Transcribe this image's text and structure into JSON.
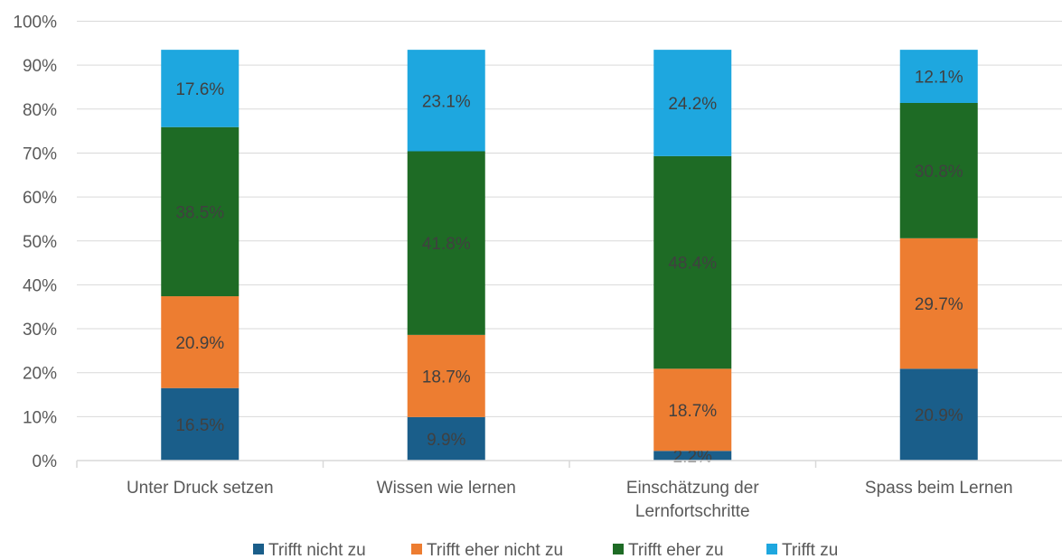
{
  "chart_data": {
    "type": "bar",
    "stacked": true,
    "categories": [
      [
        "Unter Druck setzen"
      ],
      [
        "Wissen wie lernen"
      ],
      [
        "Einschätzung der",
        "Lernfortschritte"
      ],
      [
        "Spass beim Lernen"
      ]
    ],
    "series": [
      {
        "name": "Trifft nicht zu",
        "color": "#1a5e8a",
        "values": [
          16.5,
          9.9,
          2.2,
          20.9
        ],
        "labels": [
          "16.5%",
          "9.9%",
          "2.2%",
          "20.9%"
        ]
      },
      {
        "name": "Trifft eher nicht zu",
        "color": "#ed7d31",
        "values": [
          20.9,
          18.7,
          18.7,
          29.7
        ],
        "labels": [
          "20.9%",
          "18.7%",
          "18.7%",
          "29.7%"
        ]
      },
      {
        "name": "Trifft eher zu",
        "color": "#1e6b25",
        "values": [
          38.5,
          41.8,
          48.4,
          30.8
        ],
        "labels": [
          "38.5%",
          "41.8%",
          "48.4%",
          "30.8%"
        ]
      },
      {
        "name": "Trifft zu",
        "color": "#1ea7df",
        "values": [
          17.6,
          23.1,
          24.2,
          12.1
        ],
        "labels": [
          "17.6%",
          "23.1%",
          "24.2%",
          "12.1%"
        ]
      }
    ],
    "y_ticks": [
      "0%",
      "10%",
      "20%",
      "30%",
      "40%",
      "50%",
      "60%",
      "70%",
      "80%",
      "90%",
      "100%"
    ],
    "ylim": [
      0,
      100
    ],
    "grid": true,
    "legend_position": "bottom",
    "title": "",
    "xlabel": "",
    "ylabel": ""
  }
}
